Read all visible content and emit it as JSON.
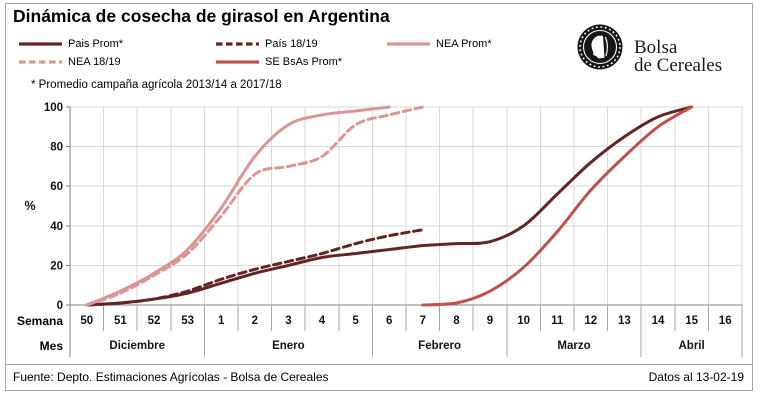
{
  "header": {
    "title": "Dinámica de cosecha de girasol en Argentina"
  },
  "legend": {
    "items": [
      {
        "label": "Pais Prom*",
        "color": "#632523",
        "dash": "solid"
      },
      {
        "label": "País 18/19",
        "color": "#632523",
        "dash": "dashed"
      },
      {
        "label": "NEA Prom*",
        "color": "#da9694",
        "dash": "solid"
      },
      {
        "label": "NEA 18/19",
        "color": "#da9694",
        "dash": "dashed"
      },
      {
        "label": "SE BsAs Prom*",
        "color": "#c0504d",
        "dash": "solid"
      }
    ]
  },
  "note": "* Promedio campaña agrícola 2013/14 a 2017/18",
  "logo": {
    "line1": "Bolsa",
    "line2": "de Cereales"
  },
  "axis": {
    "ylabel": "%",
    "week_row_label": "Semana",
    "month_row_label": "Mes"
  },
  "chart_data": {
    "type": "line",
    "title": "Dinámica de cosecha de girasol en Argentina",
    "xlabel": "Semana / Mes",
    "ylabel": "%",
    "ylim": [
      0,
      100
    ],
    "yticks": [
      0,
      20,
      40,
      60,
      80,
      100
    ],
    "grid": true,
    "categories": [
      "50",
      "51",
      "52",
      "53",
      "1",
      "2",
      "3",
      "4",
      "5",
      "6",
      "7",
      "8",
      "9",
      "10",
      "11",
      "12",
      "13",
      "14",
      "15",
      "16"
    ],
    "month_groups": [
      {
        "label": "Diciembre",
        "span": 4
      },
      {
        "label": "Enero",
        "span": 5
      },
      {
        "label": "Febrero",
        "span": 4
      },
      {
        "label": "Marzo",
        "span": 4
      },
      {
        "label": "Abril",
        "span": 3
      }
    ],
    "series": [
      {
        "name": "Pais Prom*",
        "color": "#632523",
        "dash": "solid",
        "start_index": 0,
        "values": [
          0,
          1,
          3,
          6,
          11,
          16,
          20,
          24,
          26,
          28,
          30,
          31,
          32,
          40,
          56,
          72,
          85,
          95,
          100
        ]
      },
      {
        "name": "País 18/19",
        "color": "#632523",
        "dash": "dashed",
        "start_index": 0,
        "values": [
          0,
          1,
          3,
          7,
          13,
          18,
          22,
          26,
          31,
          35,
          38
        ]
      },
      {
        "name": "NEA Prom*",
        "color": "#da9694",
        "dash": "solid",
        "start_index": 0,
        "values": [
          0,
          7,
          16,
          28,
          49,
          75,
          91,
          96,
          98,
          100
        ]
      },
      {
        "name": "NEA 18/19",
        "color": "#da9694",
        "dash": "dashed",
        "start_index": 0,
        "values": [
          0,
          6,
          15,
          26,
          45,
          66,
          70,
          75,
          91,
          96,
          100
        ]
      },
      {
        "name": "SE BsAs Prom*",
        "color": "#c0504d",
        "dash": "solid",
        "start_index": 10,
        "values": [
          0,
          1,
          7,
          19,
          37,
          58,
          75,
          90,
          100
        ]
      }
    ],
    "legend_position": "top-left"
  },
  "footer": {
    "source": "Fuente: Depto. Estimaciones Agrícolas - Bolsa de Cereales",
    "date_note": "Datos al 13-02-19"
  },
  "colors": {
    "dark": "#632523",
    "pink": "#da9694",
    "red": "#c0504d",
    "grid": "#d9d9d9",
    "axis_line": "#808080",
    "separator": "#a6a6a6"
  }
}
